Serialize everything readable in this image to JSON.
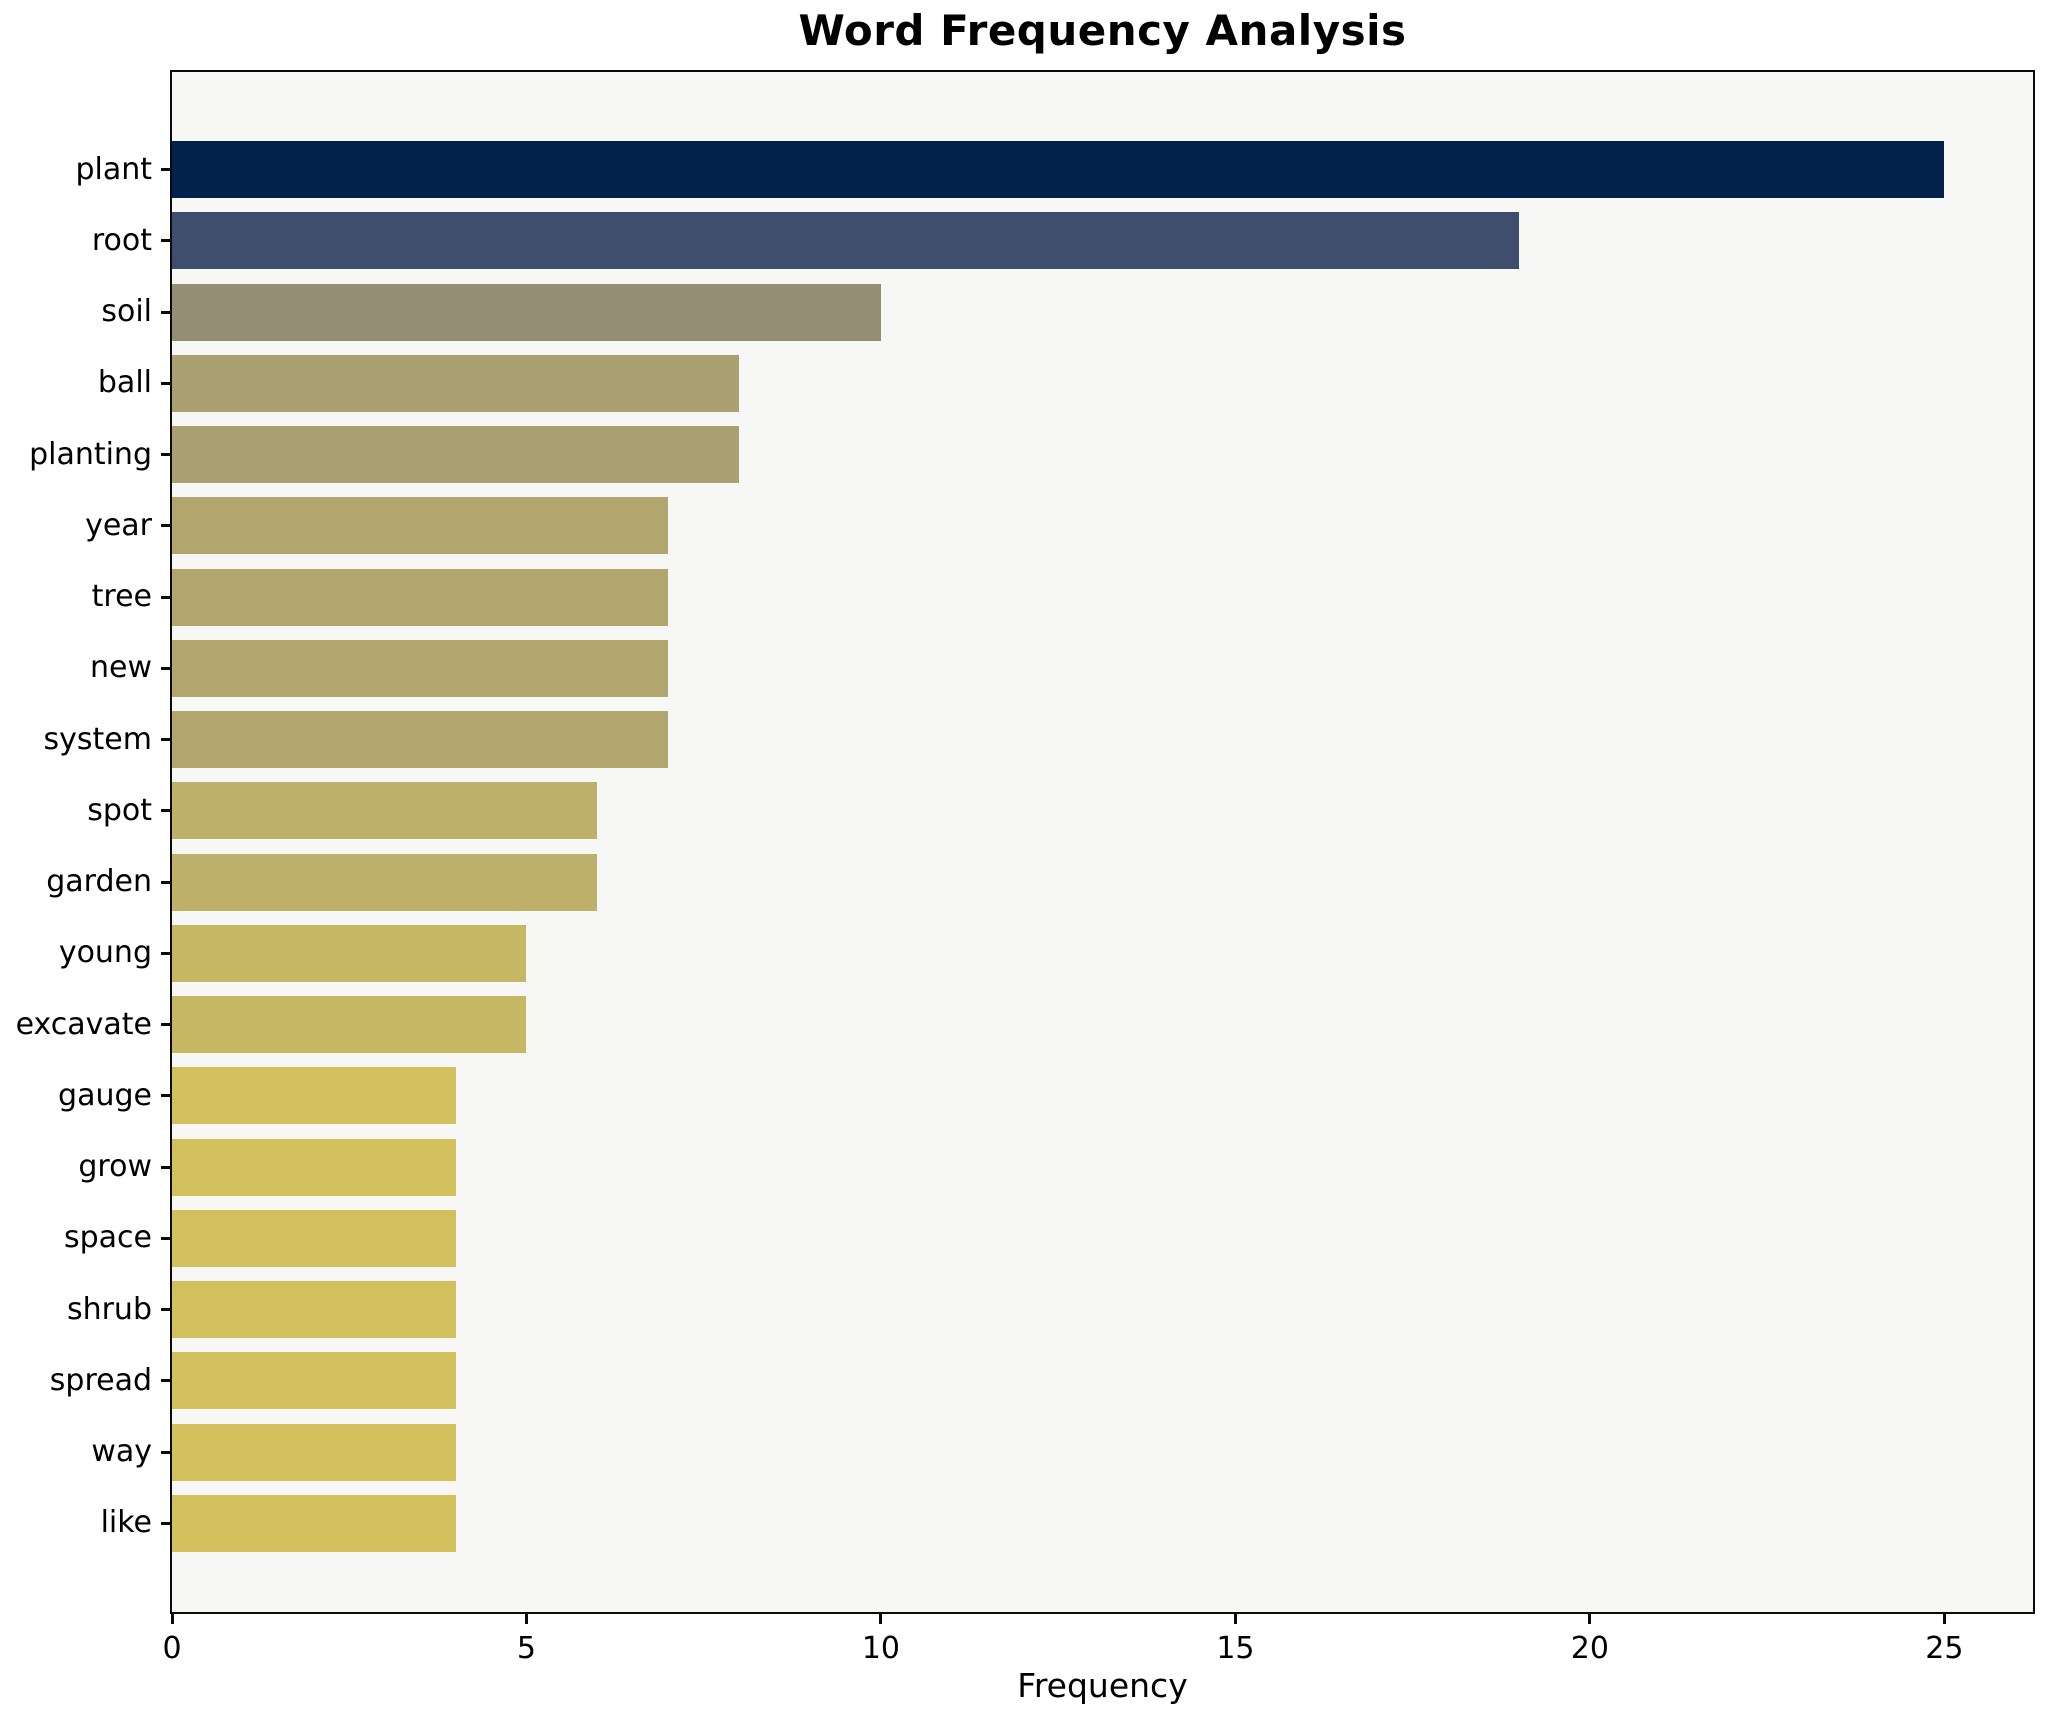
{
  "chart_data": {
    "type": "bar",
    "orientation": "horizontal",
    "title": "Word Frequency Analysis",
    "xlabel": "Frequency",
    "ylabel": "",
    "grid": false,
    "plot_background": "#f7f7f5",
    "xlim": [
      0,
      26.25
    ],
    "x_ticks": [
      0,
      5,
      10,
      15,
      20,
      25
    ],
    "categories": [
      "plant",
      "root",
      "soil",
      "ball",
      "planting",
      "year",
      "tree",
      "new",
      "system",
      "spot",
      "garden",
      "young",
      "excavate",
      "gauge",
      "grow",
      "space",
      "shrub",
      "spread",
      "way",
      "like"
    ],
    "values": [
      25,
      19,
      10,
      8,
      8,
      7,
      7,
      7,
      7,
      6,
      6,
      5,
      5,
      4,
      4,
      4,
      4,
      4,
      4,
      4
    ],
    "bar_colors": [
      "#02214d",
      "#3f4e6c",
      "#948e74",
      "#aba071",
      "#aba071",
      "#b1a76e",
      "#b1a76e",
      "#b1a76e",
      "#b1a76e",
      "#bdb06a",
      "#bdb06a",
      "#c6b764",
      "#c6b764",
      "#d2c05c",
      "#d2c05c",
      "#d2c05c",
      "#d2c05c",
      "#d2c05c",
      "#d2c05c",
      "#d2c05c"
    ]
  }
}
